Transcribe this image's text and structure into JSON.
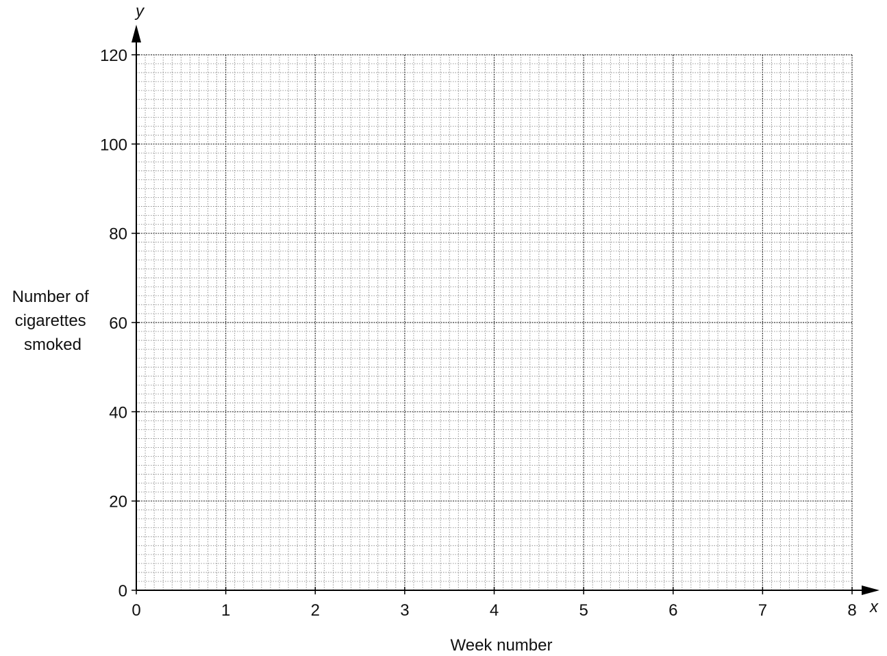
{
  "chart_data": {
    "type": "scatter",
    "title": "",
    "xlabel": "Week number",
    "ylabel_lines": [
      "Number of",
      "cigarettes",
      "smoked"
    ],
    "x_axis_var": "x",
    "y_axis_var": "y",
    "xlim": [
      0,
      8
    ],
    "ylim": [
      0,
      120
    ],
    "x_ticks": [
      0,
      1,
      2,
      3,
      4,
      5,
      6,
      7,
      8
    ],
    "y_ticks": [
      0,
      20,
      40,
      60,
      80,
      100,
      120
    ],
    "x_minor_per_major": 10,
    "y_minor_per_major": 10,
    "grid": true,
    "series": []
  }
}
